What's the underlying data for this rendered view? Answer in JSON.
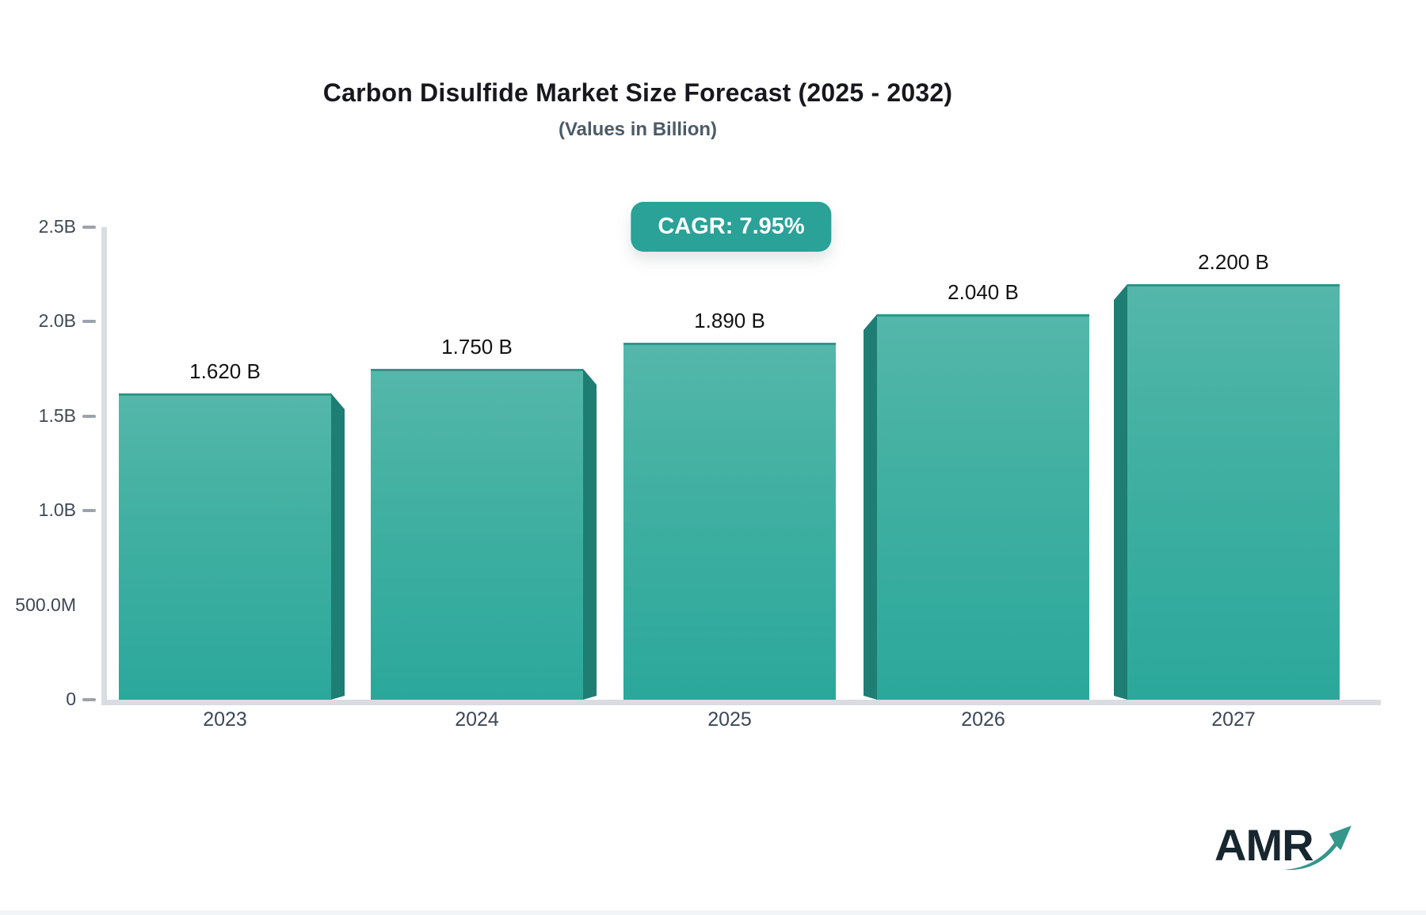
{
  "header": {
    "title": "Carbon Disulfide Market Size Forecast (2025 - 2032)",
    "subtitle": "(Values in Billion)"
  },
  "badge": {
    "label": "CAGR: 7.95%",
    "bg_color": "#2aa298",
    "text_color": "#ffffff"
  },
  "chart_data": {
    "type": "bar",
    "title": "Carbon Disulfide Market Size Forecast (2025 - 2032)",
    "subtitle": "(Values in Billion)",
    "annotation": "CAGR: 7.95%",
    "categories": [
      "2023",
      "2024",
      "2025",
      "2026",
      "2027"
    ],
    "values": [
      1.62,
      1.75,
      1.89,
      2.04,
      2.2
    ],
    "value_labels": [
      "1.620 B",
      "1.750 B",
      "1.890 B",
      "2.040 B",
      "2.200 B"
    ],
    "xlabel": "",
    "ylabel": "",
    "ylim": [
      0,
      2.5
    ],
    "y_axis": {
      "tick_labels": [
        "2.5B",
        "2.0B",
        "1.5B",
        "1.0B",
        "500.0M",
        "0"
      ],
      "tick_values": [
        2.5,
        2.0,
        1.5,
        1.0,
        0.5,
        0
      ],
      "tick_has_dash": [
        true,
        true,
        true,
        true,
        false,
        true
      ]
    },
    "grid": false,
    "legend": false,
    "bar_colors": {
      "top": "#54b7aa",
      "bottom": "#2ba89b",
      "side_3d": "#1e7e73",
      "top_edge": "#2e9589"
    }
  },
  "colors": {
    "background": "#ffffff",
    "axis_line": "#d9dce1",
    "tick_dash": "#9ba3ac",
    "y_label": "#3e4956",
    "x_label": "#3c4858",
    "title": "#16181d",
    "subtitle": "#4c5a68",
    "value_label": "#131313",
    "logo_text": "#17262f",
    "logo_arrow": "#35968b",
    "footer_strip": "#f2f5f8"
  },
  "logo": {
    "text": "AMR",
    "arrow_icon": "growth-arrow-icon"
  }
}
